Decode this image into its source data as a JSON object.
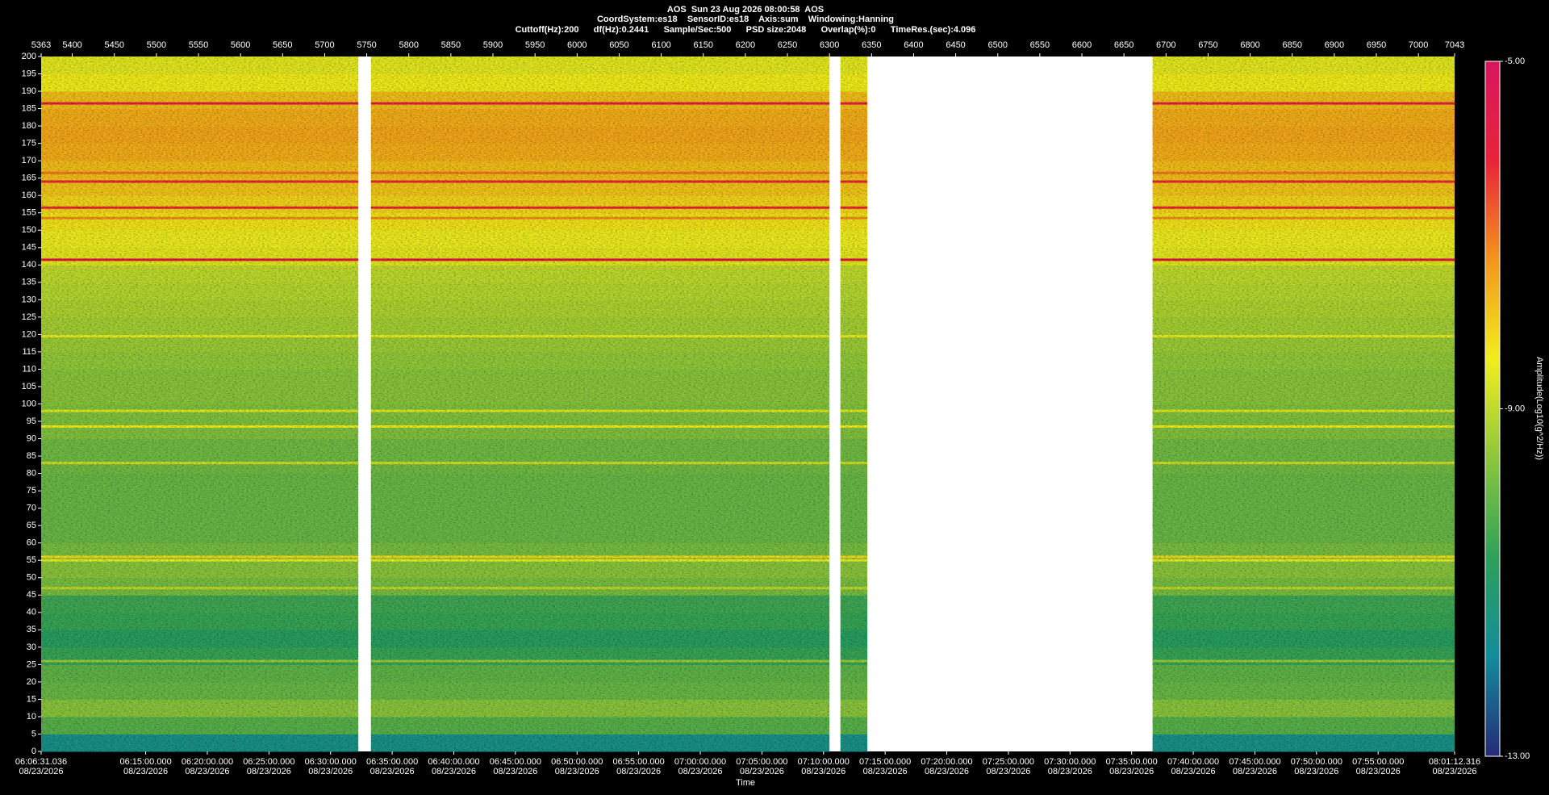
{
  "chart_data": {
    "type": "spectrogram",
    "title": "AOS  Sun 23 Aug 2026 08:00:58  AOS",
    "subtitle": "CoordSystem:es18    SensorID:es18    Axis:sum    Windowing:Hanning",
    "parameters": "Cuttoff(Hz):200      df(Hz):0.2441      Sample/Sec:500      PSD size:2048      Overlap(%):0      TimeRes.(sec):4.096",
    "xlabel": "Time",
    "colorbar_label": "Amplitude(Log10(g^2/Hz))",
    "xlim": [
      5363,
      7043
    ],
    "xticks": [
      5363,
      5400,
      5450,
      5500,
      5550,
      5600,
      5650,
      5700,
      5750,
      5800,
      5850,
      5900,
      5950,
      6000,
      6050,
      6100,
      6150,
      6200,
      6250,
      6300,
      6350,
      6400,
      6450,
      6500,
      6550,
      6600,
      6650,
      6700,
      6750,
      6800,
      6850,
      6900,
      6950,
      7000,
      7043
    ],
    "time_ticks": [
      {
        "value": 5363,
        "label": "06:06:31.036",
        "date": "08/23/2026"
      },
      {
        "value": 5487.26,
        "label": "06:15:00.000",
        "date": "08/23/2026"
      },
      {
        "value": 5560.5,
        "label": "06:20:00.000",
        "date": "08/23/2026"
      },
      {
        "value": 5633.74,
        "label": "06:25:00.000",
        "date": "08/23/2026"
      },
      {
        "value": 5706.99,
        "label": "06:30:00.000",
        "date": "08/23/2026"
      },
      {
        "value": 5780.23,
        "label": "06:35:00.000",
        "date": "08/23/2026"
      },
      {
        "value": 5853.47,
        "label": "06:40:00.000",
        "date": "08/23/2026"
      },
      {
        "value": 5926.71,
        "label": "06:45:00.000",
        "date": "08/23/2026"
      },
      {
        "value": 5999.96,
        "label": "06:50:00.000",
        "date": "08/23/2026"
      },
      {
        "value": 6073.2,
        "label": "06:55:00.000",
        "date": "08/23/2026"
      },
      {
        "value": 6146.44,
        "label": "07:00:00.000",
        "date": "08/23/2026"
      },
      {
        "value": 6219.68,
        "label": "07:05:00.000",
        "date": "08/23/2026"
      },
      {
        "value": 6292.92,
        "label": "07:10:00.000",
        "date": "08/23/2026"
      },
      {
        "value": 6366.17,
        "label": "07:15:00.000",
        "date": "08/23/2026"
      },
      {
        "value": 6439.41,
        "label": "07:20:00.000",
        "date": "08/23/2026"
      },
      {
        "value": 6512.65,
        "label": "07:25:00.000",
        "date": "08/23/2026"
      },
      {
        "value": 6585.89,
        "label": "07:30:00.000",
        "date": "08/23/2026"
      },
      {
        "value": 6659.14,
        "label": "07:35:00.000",
        "date": "08/23/2026"
      },
      {
        "value": 6732.38,
        "label": "07:40:00.000",
        "date": "08/23/2026"
      },
      {
        "value": 6805.62,
        "label": "07:45:00.000",
        "date": "08/23/2026"
      },
      {
        "value": 6878.86,
        "label": "07:50:00.000",
        "date": "08/23/2026"
      },
      {
        "value": 6952.1,
        "label": "07:55:00.000",
        "date": "08/23/2026"
      },
      {
        "value": 7043,
        "label": "08:01:12.316",
        "date": "08/23/2026"
      }
    ],
    "ylim": [
      0,
      200
    ],
    "yticks": [
      0,
      5,
      10,
      15,
      20,
      25,
      30,
      35,
      40,
      45,
      50,
      55,
      60,
      65,
      70,
      75,
      80,
      85,
      90,
      95,
      100,
      105,
      110,
      115,
      120,
      125,
      130,
      135,
      140,
      145,
      150,
      155,
      160,
      165,
      170,
      175,
      180,
      185,
      190,
      195,
      200
    ],
    "clim": [
      -13,
      -5
    ],
    "cticks": [
      {
        "value": -13,
        "label": "-13.00"
      },
      {
        "value": -9,
        "label": "-9.00"
      },
      {
        "value": -5,
        "label": "-5.00"
      }
    ],
    "colormap": [
      "#262a78",
      "#138c9c",
      "#2ea05a",
      "#8cc63c",
      "#f2ee1e",
      "#f3961c",
      "#e8233a",
      "#d8165e"
    ],
    "segments": [
      [
        5363,
        5740
      ],
      [
        5755,
        6300
      ],
      [
        6313,
        6345
      ],
      [
        6684,
        7043
      ]
    ],
    "frequency_bins": [
      0,
      5,
      10,
      15,
      20,
      25,
      30,
      35,
      40,
      45,
      50,
      55,
      60,
      65,
      70,
      75,
      80,
      85,
      90,
      95,
      100,
      105,
      110,
      115,
      120,
      125,
      130,
      135,
      140,
      145,
      150,
      155,
      160,
      165,
      170,
      175,
      180,
      185,
      190,
      195,
      200
    ],
    "levels": [
      -11.5,
      -10.2,
      -9.6,
      -10.0,
      -10.1,
      -10.6,
      -10.8,
      -10.6,
      -10.5,
      -9.8,
      -9.6,
      -9.8,
      -10.0,
      -10.0,
      -10.0,
      -10.0,
      -9.9,
      -9.9,
      -9.7,
      -9.7,
      -9.6,
      -9.6,
      -9.5,
      -9.4,
      -9.3,
      -9.2,
      -9.1,
      -9.0,
      -8.6,
      -8.5,
      -8.3,
      -8.1,
      -7.9,
      -7.8,
      -7.6,
      -7.5,
      -7.6,
      -7.8,
      -8.4,
      -8.6
    ],
    "tones": {
      "frequencies": [
        186.5,
        166.5,
        164,
        156.5,
        153.5,
        141.5,
        119.5,
        98,
        93.5,
        83,
        56,
        55,
        47,
        26
      ],
      "levels": [
        -6.0,
        -7.0,
        -6.2,
        -6.2,
        -7.2,
        -5.8,
        -8.5,
        -8.6,
        -8.4,
        -8.8,
        -8.2,
        -8.5,
        -9.0,
        -9.4
      ]
    }
  }
}
